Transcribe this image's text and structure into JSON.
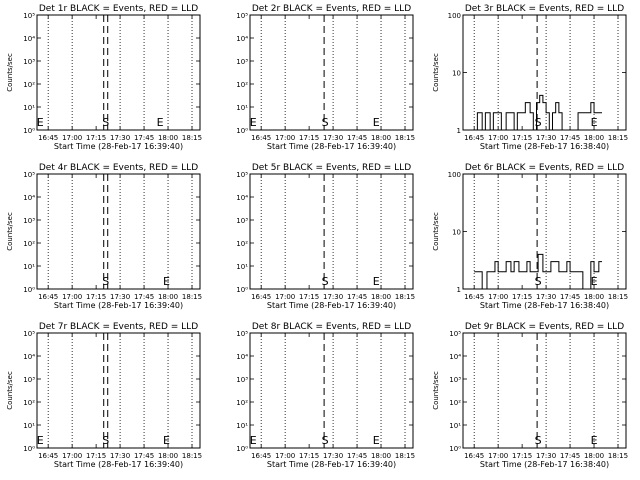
{
  "chart_data": [
    {
      "title": "Det 1r BLACK = Events, RED = LLD",
      "ylabel": "Counts/sec",
      "xlabel": "Start Time (28-Feb-17 16:39:40)",
      "type": "line",
      "yscale": "log",
      "ylim": [
        1,
        100000
      ],
      "yticks": [
        {
          "value": 1,
          "label": "10⁰"
        },
        {
          "value": 10,
          "label": "10¹"
        },
        {
          "value": 100,
          "label": "10²"
        },
        {
          "value": 1000,
          "label": "10³"
        },
        {
          "value": 10000,
          "label": "10⁴"
        },
        {
          "value": 100000,
          "label": "10⁵"
        }
      ],
      "xticks": [
        "16:45",
        "17:00",
        "17:15",
        "17:30",
        "17:45",
        "18:00",
        "18:15"
      ],
      "series": [
        {
          "values": []
        }
      ],
      "markers": [
        {
          "label": "E",
          "time": "16:40"
        },
        {
          "label": "S",
          "time": "17:21"
        },
        {
          "label": "E",
          "time": "17:55"
        }
      ]
    },
    {
      "title": "Det 2r BLACK = Events, RED = LLD",
      "ylabel": "",
      "xlabel": "Start Time (28-Feb-17 16:39:40)",
      "type": "line",
      "yscale": "log",
      "ylim": [
        1,
        100000
      ],
      "yticks": [
        {
          "value": 1,
          "label": "10⁰"
        },
        {
          "value": 10,
          "label": "10¹"
        },
        {
          "value": 100,
          "label": "10²"
        },
        {
          "value": 1000,
          "label": "10³"
        },
        {
          "value": 10000,
          "label": "10⁴"
        },
        {
          "value": 100000,
          "label": "10⁵"
        }
      ],
      "xticks": [
        "16:45",
        "17:00",
        "17:15",
        "17:30",
        "17:45",
        "18:00",
        "18:15"
      ],
      "series": [
        {
          "values": []
        }
      ],
      "markers": [
        {
          "label": "E",
          "time": "16:40"
        },
        {
          "label": "S",
          "time": "17:25"
        },
        {
          "label": "E",
          "time": "17:57"
        }
      ]
    },
    {
      "title": "Det 3r BLACK = Events, RED = LLD",
      "ylabel": "Counts/sec",
      "xlabel": "Start Time (28-Feb-17 16:38:40)",
      "type": "line",
      "yscale": "log",
      "ylim": [
        1,
        100
      ],
      "yticks": [
        {
          "value": 1,
          "label": "1"
        },
        {
          "value": 10,
          "label": "10"
        },
        {
          "value": 100,
          "label": "100"
        }
      ],
      "xticks": [
        "16:45",
        "17:00",
        "17:15",
        "17:30",
        "17:45",
        "18:00",
        "18:15"
      ],
      "series": [
        {
          "name": "Events",
          "x": [
            "16:45",
            "16:47",
            "16:50",
            "16:52",
            "16:55",
            "16:57",
            "17:00",
            "17:02",
            "17:05",
            "17:08",
            "17:10",
            "17:12",
            "17:15",
            "17:17",
            "17:20",
            "17:22",
            "17:24",
            "17:26",
            "17:28",
            "17:30",
            "17:32",
            "17:34",
            "17:36",
            "17:38",
            "17:40",
            "17:45",
            "17:50",
            "17:55",
            "17:58",
            "18:00",
            "18:02",
            "18:05"
          ],
          "values": [
            1,
            2,
            1,
            2,
            1,
            2,
            2,
            1,
            2,
            2,
            1,
            2,
            2,
            3,
            2,
            1,
            3,
            4,
            3,
            2,
            1,
            2,
            3,
            2,
            1,
            1,
            2,
            2,
            3,
            2,
            2,
            2
          ]
        }
      ],
      "markers": [
        {
          "label": "S",
          "time": "17:25"
        },
        {
          "label": "E",
          "time": "18:00"
        }
      ]
    },
    {
      "title": "Det 4r BLACK = Events, RED = LLD",
      "ylabel": "Counts/sec",
      "xlabel": "Start Time (28-Feb-17 16:39:40)",
      "type": "line",
      "yscale": "log",
      "ylim": [
        1,
        100000
      ],
      "yticks": [
        {
          "value": 1,
          "label": "10⁰"
        },
        {
          "value": 10,
          "label": "10¹"
        },
        {
          "value": 100,
          "label": "10²"
        },
        {
          "value": 1000,
          "label": "10³"
        },
        {
          "value": 10000,
          "label": "10⁴"
        },
        {
          "value": 100000,
          "label": "10⁵"
        }
      ],
      "xticks": [
        "16:45",
        "17:00",
        "17:15",
        "17:30",
        "17:45",
        "18:00",
        "18:15"
      ],
      "series": [
        {
          "values": []
        }
      ],
      "markers": [
        {
          "label": "S",
          "time": "17:21"
        },
        {
          "label": "E",
          "time": "17:59"
        }
      ]
    },
    {
      "title": "Det 5r BLACK = Events, RED = LLD",
      "ylabel": "",
      "xlabel": "Start Time (28-Feb-17 16:39:40)",
      "type": "line",
      "yscale": "log",
      "ylim": [
        1,
        100000
      ],
      "yticks": [
        {
          "value": 1,
          "label": "10⁰"
        },
        {
          "value": 10,
          "label": "10¹"
        },
        {
          "value": 100,
          "label": "10²"
        },
        {
          "value": 1000,
          "label": "10³"
        },
        {
          "value": 10000,
          "label": "10⁴"
        },
        {
          "value": 100000,
          "label": "10⁵"
        }
      ],
      "xticks": [
        "16:45",
        "17:00",
        "17:15",
        "17:30",
        "17:45",
        "18:00",
        "18:15"
      ],
      "series": [
        {
          "values": []
        }
      ],
      "markers": [
        {
          "label": "S",
          "time": "17:25"
        },
        {
          "label": "E",
          "time": "17:57"
        }
      ]
    },
    {
      "title": "Det 6r BLACK = Events, RED = LLD",
      "ylabel": "Counts/sec",
      "xlabel": "Start Time (28-Feb-17 16:38:40)",
      "type": "line",
      "yscale": "log",
      "ylim": [
        1,
        100
      ],
      "yticks": [
        {
          "value": 1,
          "label": "1"
        },
        {
          "value": 10,
          "label": "10"
        },
        {
          "value": 100,
          "label": "100"
        }
      ],
      "xticks": [
        "16:45",
        "17:00",
        "17:15",
        "17:30",
        "17:45",
        "18:00",
        "18:15"
      ],
      "series": [
        {
          "name": "Events",
          "x": [
            "16:45",
            "16:48",
            "16:50",
            "16:53",
            "16:55",
            "16:58",
            "17:00",
            "17:03",
            "17:05",
            "17:08",
            "17:10",
            "17:13",
            "17:15",
            "17:18",
            "17:20",
            "17:23",
            "17:25",
            "17:28",
            "17:30",
            "17:33",
            "17:35",
            "17:38",
            "17:40",
            "17:43",
            "17:45",
            "17:48",
            "17:50",
            "17:53",
            "17:55",
            "17:58",
            "18:00",
            "18:03",
            "18:05"
          ],
          "values": [
            2,
            2,
            1,
            2,
            2,
            3,
            2,
            2,
            3,
            2,
            3,
            2,
            2,
            3,
            2,
            2,
            4,
            2,
            2,
            3,
            3,
            2,
            2,
            3,
            2,
            2,
            2,
            1,
            1,
            3,
            2,
            3,
            3
          ]
        }
      ],
      "markers": [
        {
          "label": "S",
          "time": "17:25"
        },
        {
          "label": "E",
          "time": "18:00"
        }
      ]
    },
    {
      "title": "Det 7r BLACK = Events, RED = LLD",
      "ylabel": "Counts/sec",
      "xlabel": "Start Time (28-Feb-17 16:39:40)",
      "type": "line",
      "yscale": "log",
      "ylim": [
        1,
        100000
      ],
      "yticks": [
        {
          "value": 1,
          "label": "10⁰"
        },
        {
          "value": 10,
          "label": "10¹"
        },
        {
          "value": 100,
          "label": "10²"
        },
        {
          "value": 1000,
          "label": "10³"
        },
        {
          "value": 10000,
          "label": "10⁴"
        },
        {
          "value": 100000,
          "label": "10⁵"
        }
      ],
      "xticks": [
        "16:45",
        "17:00",
        "17:15",
        "17:30",
        "17:45",
        "18:00",
        "18:15"
      ],
      "series": [
        {
          "values": []
        }
      ],
      "markers": [
        {
          "label": "E",
          "time": "16:40"
        },
        {
          "label": "S",
          "time": "17:21"
        },
        {
          "label": "E",
          "time": "17:59"
        }
      ]
    },
    {
      "title": "Det 8r BLACK = Events, RED = LLD",
      "ylabel": "",
      "xlabel": "Start Time (28-Feb-17 16:39:40)",
      "type": "line",
      "yscale": "log",
      "ylim": [
        1,
        100000
      ],
      "yticks": [
        {
          "value": 1,
          "label": "10⁰"
        },
        {
          "value": 10,
          "label": "10¹"
        },
        {
          "value": 100,
          "label": "10²"
        },
        {
          "value": 1000,
          "label": "10³"
        },
        {
          "value": 10000,
          "label": "10⁴"
        },
        {
          "value": 100000,
          "label": "10⁵"
        }
      ],
      "xticks": [
        "16:45",
        "17:00",
        "17:15",
        "17:30",
        "17:45",
        "18:00",
        "18:15"
      ],
      "series": [
        {
          "values": []
        }
      ],
      "markers": [
        {
          "label": "E",
          "time": "16:40"
        },
        {
          "label": "S",
          "time": "17:25"
        },
        {
          "label": "E",
          "time": "17:57"
        }
      ]
    },
    {
      "title": "Det 9r BLACK = Events, RED = LLD",
      "ylabel": "Counts/sec",
      "xlabel": "Start Time (28-Feb-17 16:38:40)",
      "type": "line",
      "yscale": "log",
      "ylim": [
        1,
        100000
      ],
      "yticks": [
        {
          "value": 1,
          "label": "10⁰"
        },
        {
          "value": 10,
          "label": "10¹"
        },
        {
          "value": 100,
          "label": "10²"
        },
        {
          "value": 1000,
          "label": "10³"
        },
        {
          "value": 10000,
          "label": "10⁴"
        },
        {
          "value": 100000,
          "label": "10⁵"
        }
      ],
      "xticks": [
        "16:45",
        "17:00",
        "17:15",
        "17:30",
        "17:45",
        "18:00",
        "18:15"
      ],
      "series": [
        {
          "values": []
        }
      ],
      "markers": [
        {
          "label": "S",
          "time": "17:25"
        },
        {
          "label": "E",
          "time": "18:00"
        }
      ]
    }
  ],
  "colors": {
    "events": "#000000",
    "lld": "#ff0000",
    "background": "#ffffff"
  }
}
